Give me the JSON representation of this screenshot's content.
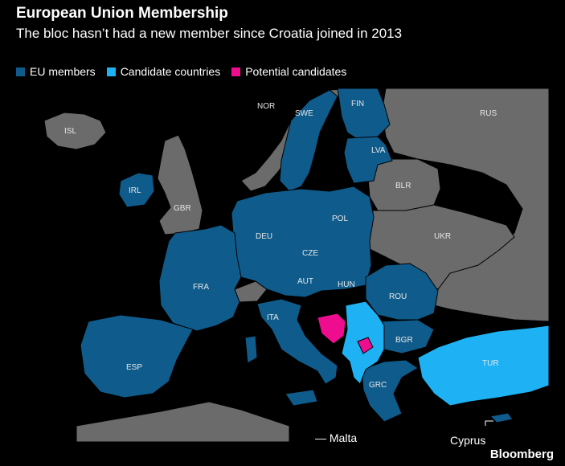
{
  "header": {
    "title": "European Union Membership",
    "subtitle": "The bloc hasn’t had a new member since Croatia joined in 2013"
  },
  "legend": [
    {
      "label": "EU members",
      "color": "#0f5c8c"
    },
    {
      "label": "Candidate countries",
      "color": "#1eb2f5"
    },
    {
      "label": "Potential candidates",
      "color": "#ee0c8f"
    }
  ],
  "colors": {
    "eu": "#0f5c8c",
    "candidate": "#1eb2f5",
    "potential": "#ee0c8f",
    "other": "#6b6b6b",
    "sea": "#000000",
    "border": "#000000"
  },
  "map": {
    "labels": {
      "nor": "NOR",
      "swe": "SWE",
      "fin": "FIN",
      "rus": "RUS",
      "isl": "ISL",
      "lva": "LVA",
      "irl": "IRL",
      "gbr": "GBR",
      "blr": "BLR",
      "deu": "DEU",
      "pol": "POL",
      "ukr": "UKR",
      "cze": "CZE",
      "fra": "FRA",
      "aut": "AUT",
      "hun": "HUN",
      "rou": "ROU",
      "ita": "ITA",
      "bgr": "BGR",
      "tur": "TUR",
      "esp": "ESP",
      "grc": "GRC"
    },
    "callouts": {
      "malta": "— Malta",
      "cyprus": "Cyprus"
    }
  },
  "footer": {
    "brand": "Bloomberg"
  }
}
